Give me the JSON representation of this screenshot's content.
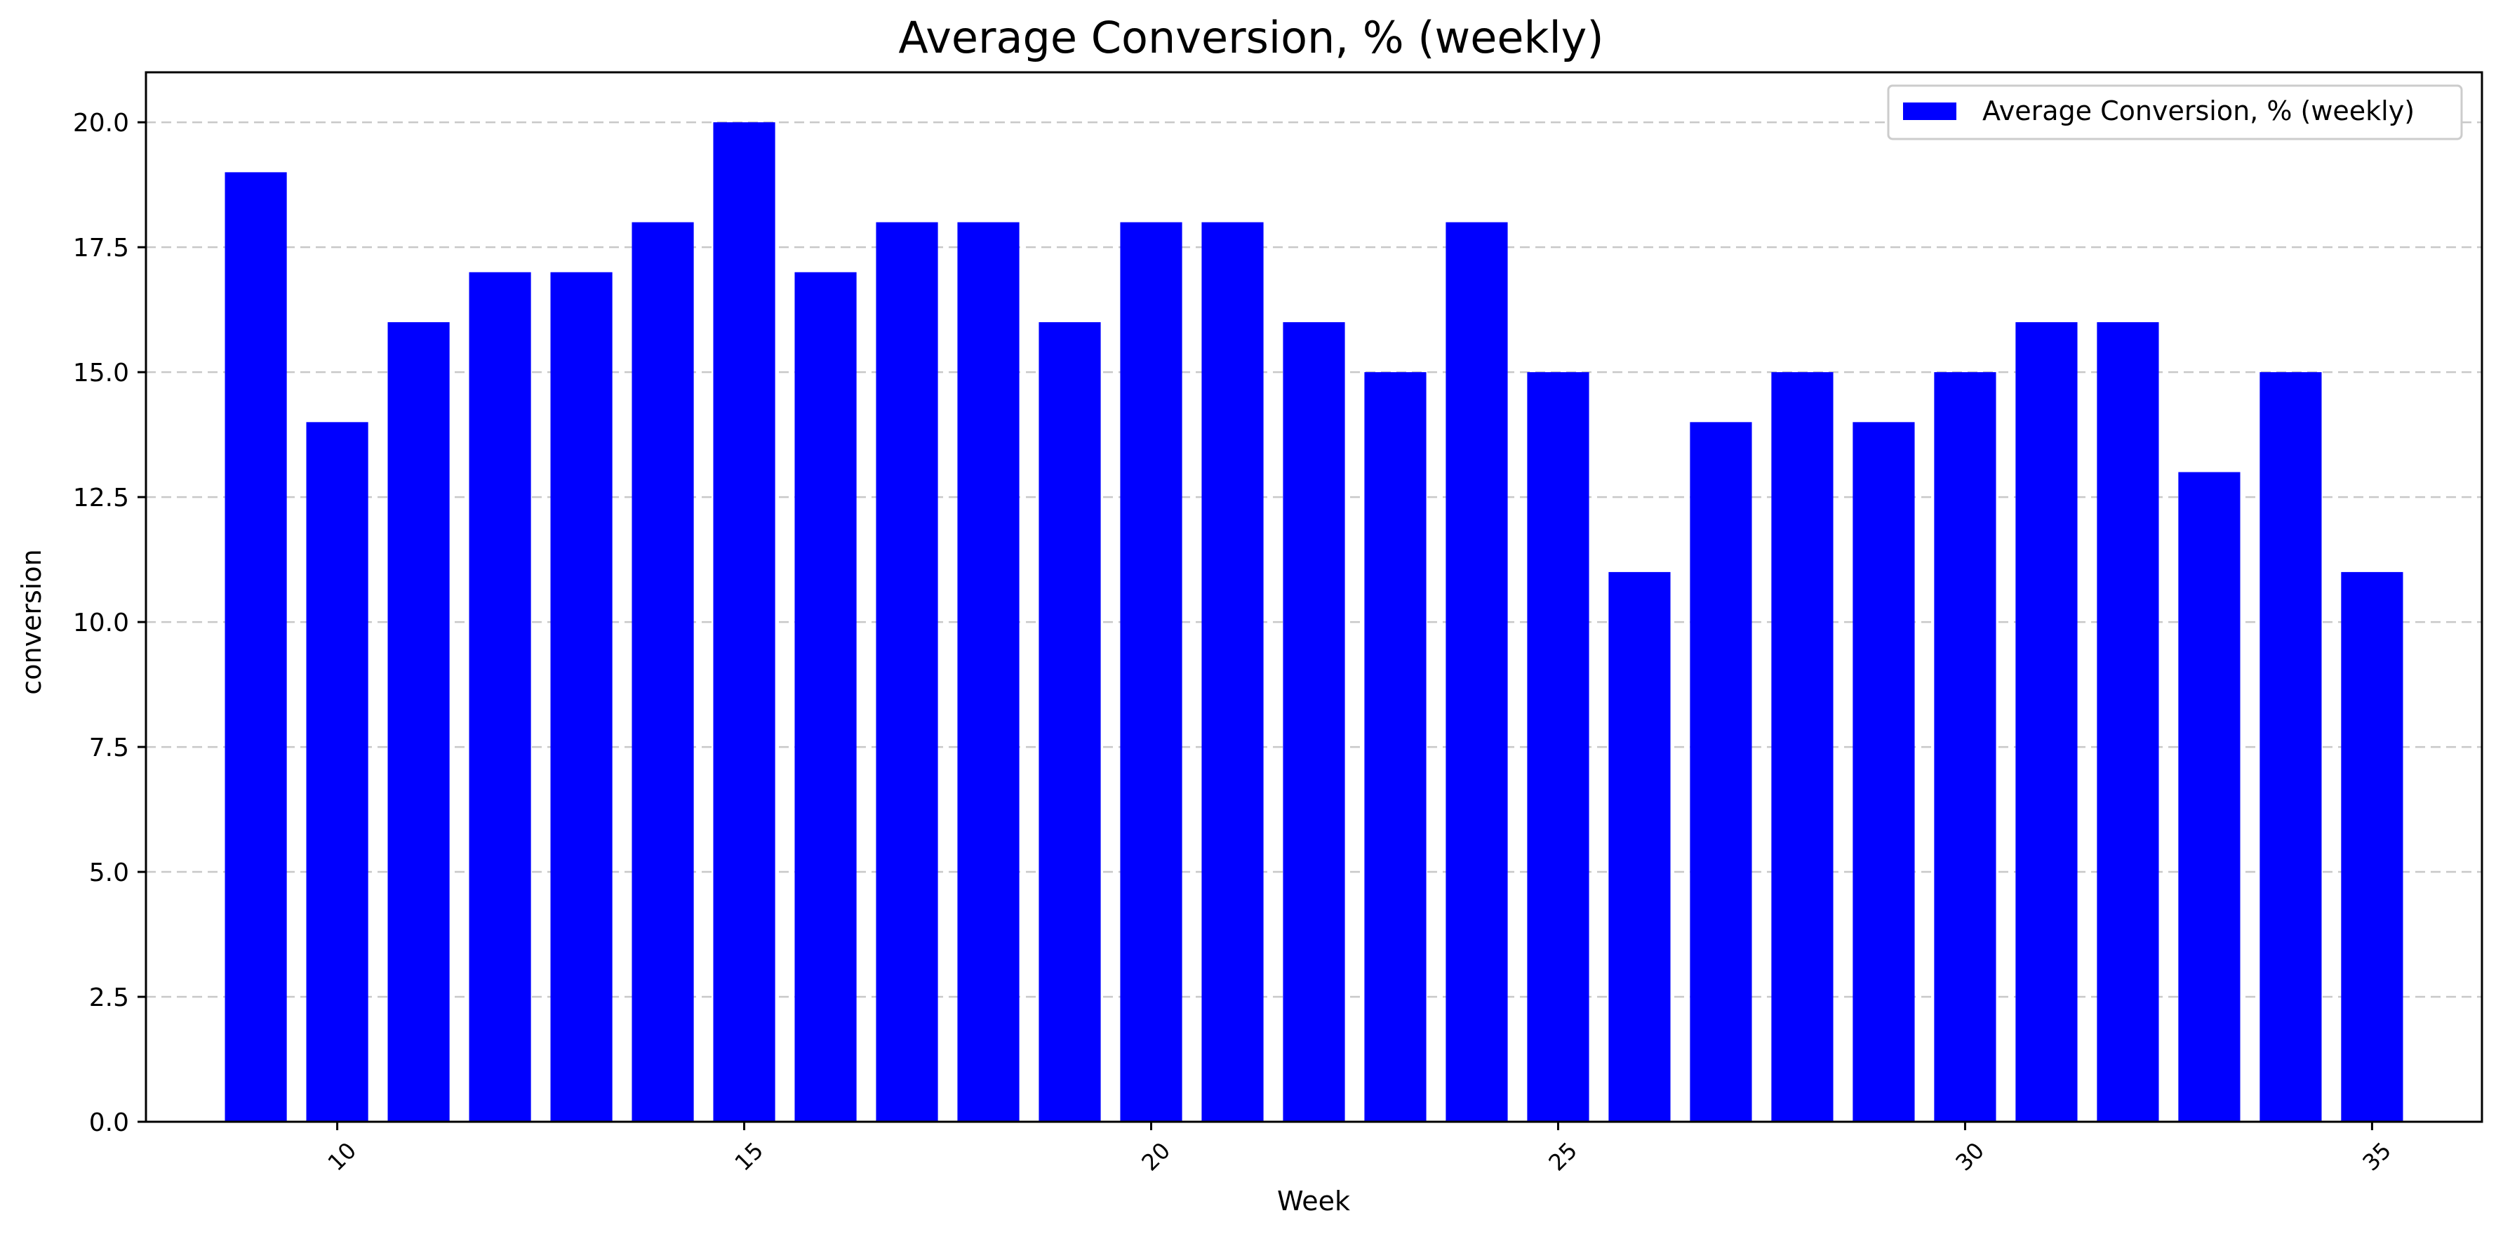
{
  "chart_data": {
    "type": "bar",
    "title": "Average Conversion, % (weekly)",
    "xlabel": "Week",
    "ylabel": "conversion",
    "x": [
      9,
      10,
      11,
      12,
      13,
      14,
      15,
      16,
      17,
      18,
      19,
      20,
      21,
      22,
      23,
      24,
      25,
      26,
      27,
      28,
      29,
      30,
      31,
      32,
      33,
      34,
      35
    ],
    "values": [
      19,
      14,
      16,
      17,
      17,
      18,
      20,
      17,
      18,
      18,
      16,
      18,
      18,
      16,
      15,
      18,
      15,
      11,
      14,
      15,
      14,
      15,
      16,
      16,
      13,
      15,
      11
    ],
    "series": [
      {
        "name": "Average Conversion, % (weekly)",
        "color": "#0000ff"
      }
    ],
    "xlim": [
      7.65,
      36.35
    ],
    "ylim": [
      0,
      21
    ],
    "xticks": [
      10,
      15,
      20,
      25,
      30,
      35
    ],
    "yticks": [
      "0.0",
      "2.5",
      "5.0",
      "7.5",
      "10.0",
      "12.5",
      "15.0",
      "17.5",
      "20.0"
    ],
    "grid": "y-dashed",
    "legend_position": "top-right"
  }
}
